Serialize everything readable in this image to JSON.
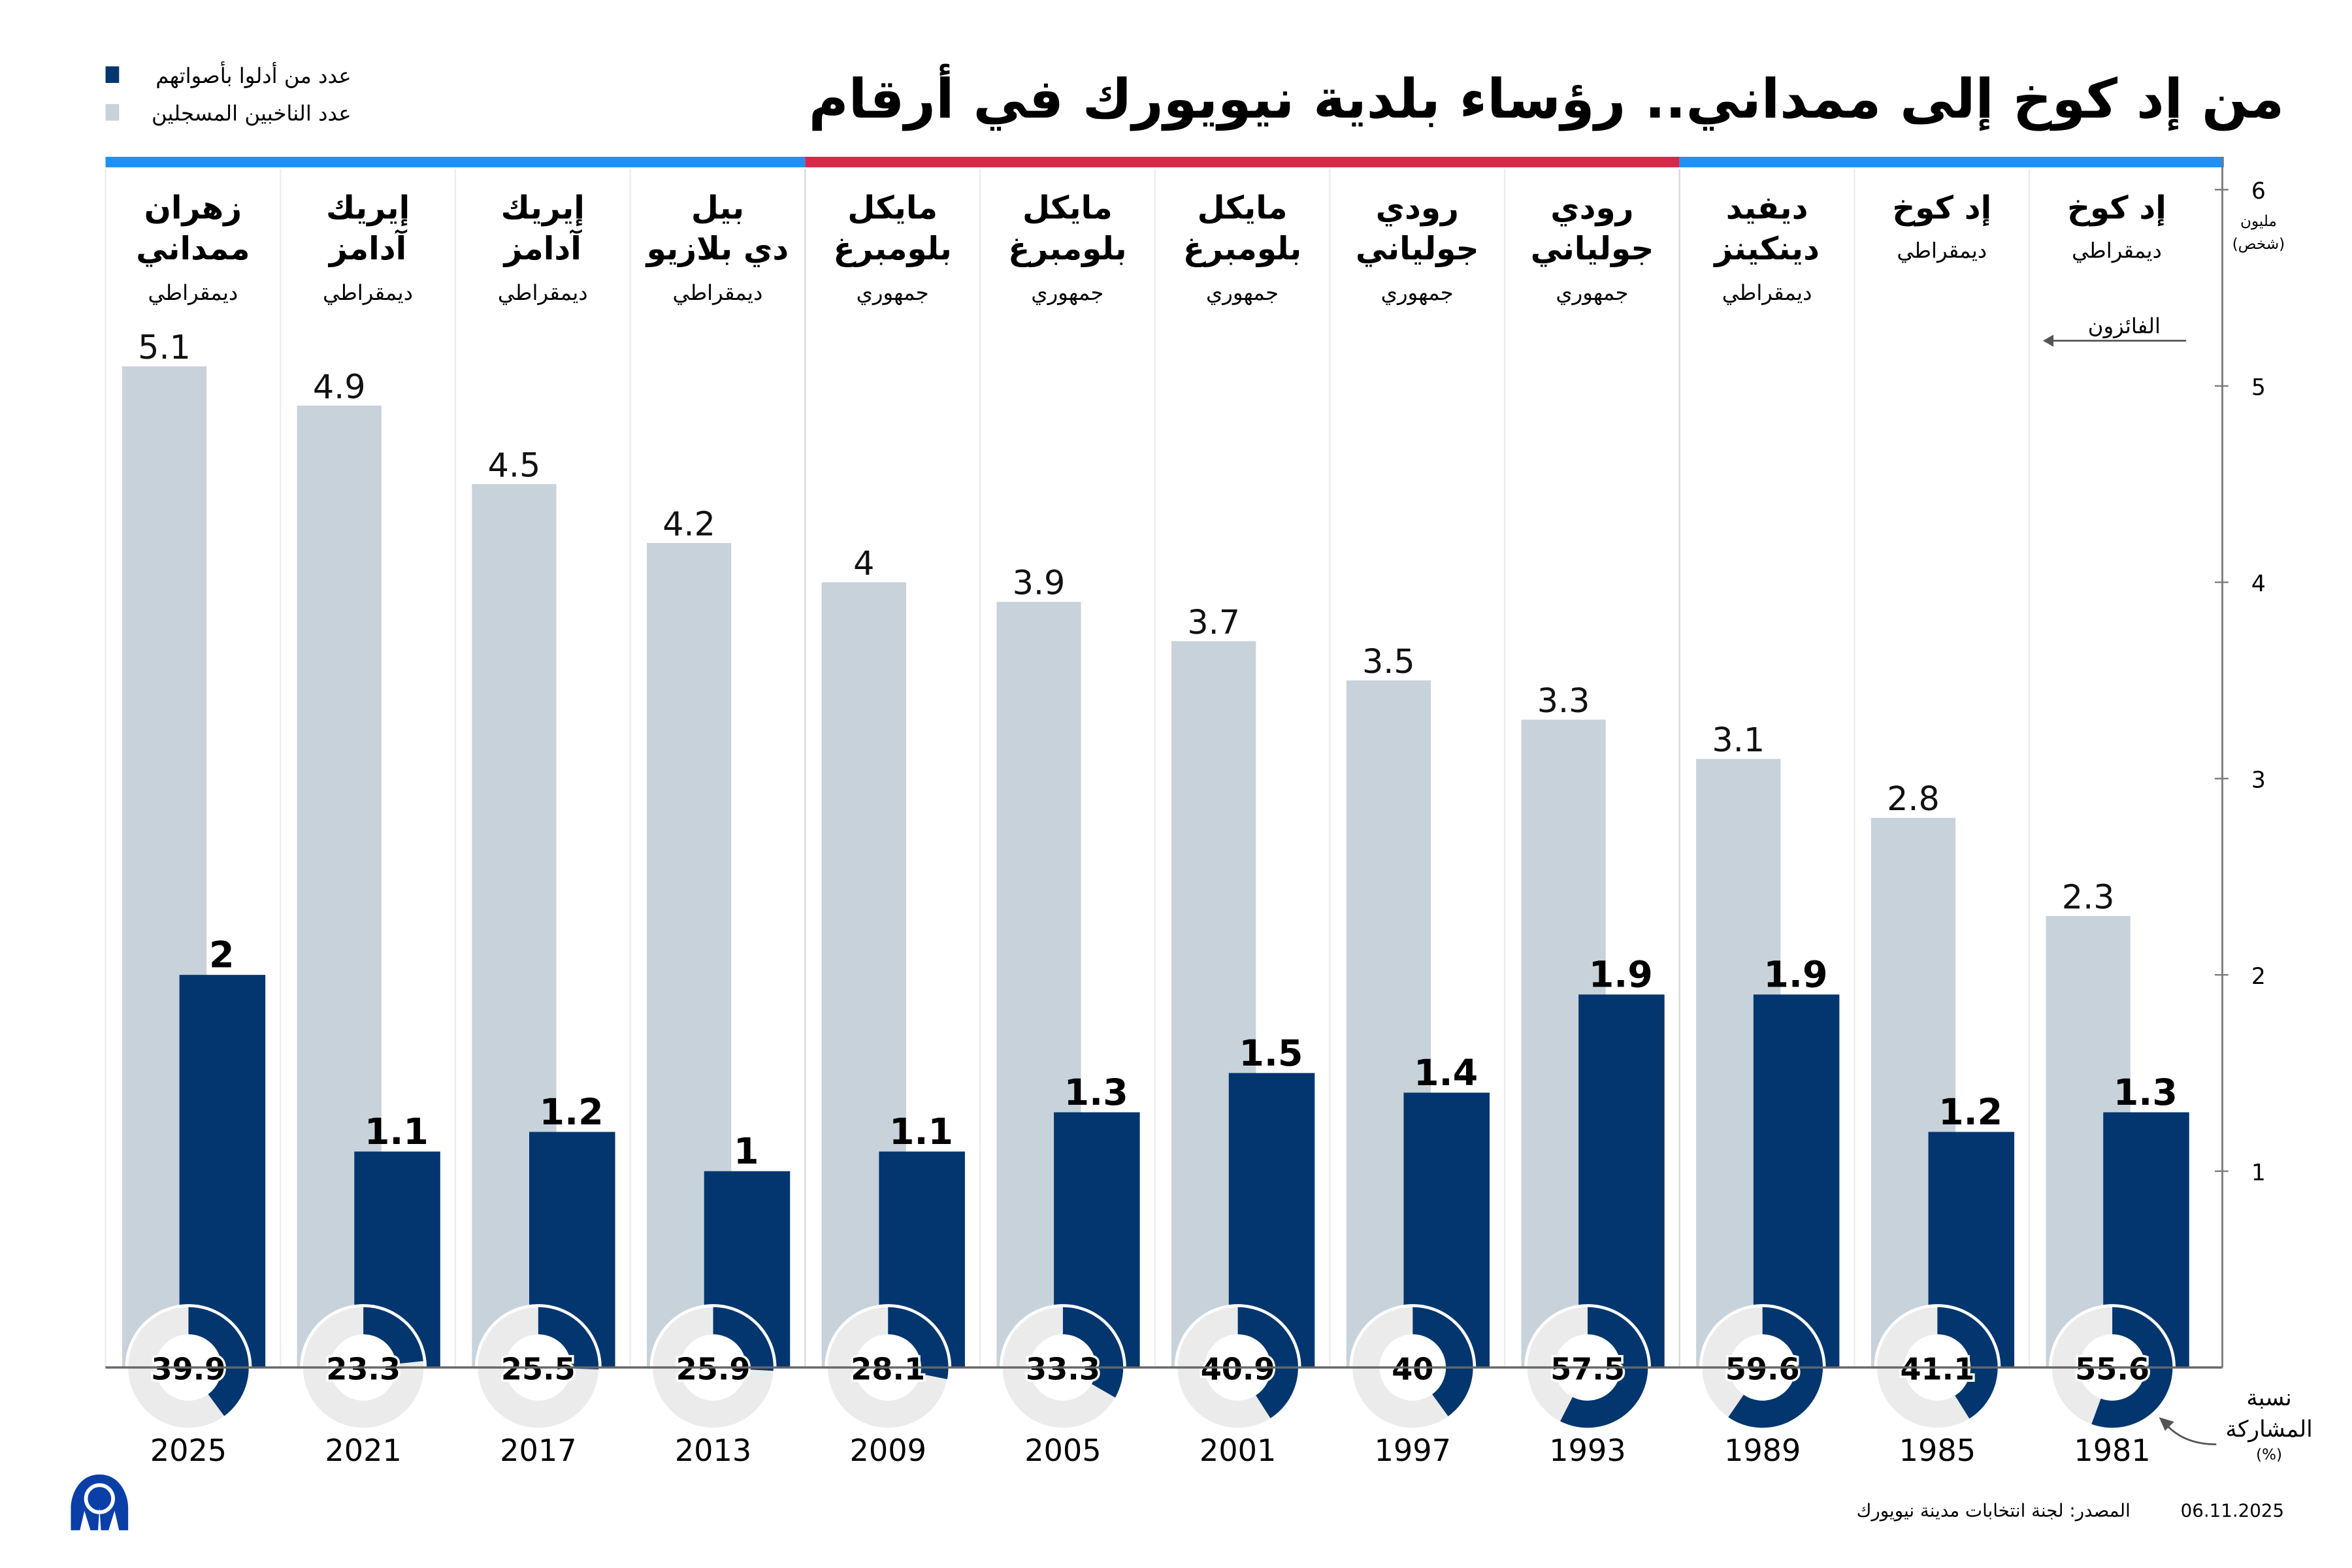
{
  "header": {
    "title": "من إد كوخ إلى ممداني.. رؤساء بلدية نيويورك في أرقام"
  },
  "legend": [
    {
      "label": "عدد من أدلوا بأصواتهم",
      "color": "#03366f"
    },
    {
      "label": "عدد الناخبين المسجلين",
      "color": "#c8d2db"
    }
  ],
  "annotations": {
    "winners": "الفائزون",
    "unit_line1": "مليون",
    "unit_line2": "(شخص)",
    "turnout_line1": "نسبة",
    "turnout_line2": "المشاركة",
    "turnout_line3": "(%)"
  },
  "footer": {
    "source": "المصدر: لجنة انتخابات مدينة نيويورك",
    "date": "06.11.2025",
    "logo_text": "AA"
  },
  "colors": {
    "registered": "#c8d2db",
    "voted": "#03366f",
    "democrat_band": "#1f91f6",
    "republican_band": "#d8284a",
    "donut_track": "#ebebeb",
    "logo": "#0a3fa8"
  },
  "chart_data": {
    "type": "bar",
    "ylim": [
      0,
      6
    ],
    "yticks": [
      "1",
      "2",
      "3",
      "4",
      "5",
      "6"
    ],
    "ylabel": "مليون (شخص)",
    "grid": false,
    "legend_position": "top-left",
    "categories": [
      "2025",
      "2021",
      "2017",
      "2013",
      "2009",
      "2005",
      "2001",
      "1997",
      "1993",
      "1989",
      "1985",
      "1981"
    ],
    "mayors": [
      {
        "name": [
          "زهران",
          "ممداني"
        ],
        "party": "ديمقراطي"
      },
      {
        "name": [
          "إيريك",
          "آدامز"
        ],
        "party": "ديمقراطي"
      },
      {
        "name": [
          "إيريك",
          "آدامز"
        ],
        "party": "ديمقراطي"
      },
      {
        "name": [
          "بيل",
          "دي بلازيو"
        ],
        "party": "ديمقراطي"
      },
      {
        "name": [
          "مايكل",
          "بلومبرغ"
        ],
        "party": "جمهوري"
      },
      {
        "name": [
          "مايكل",
          "بلومبرغ"
        ],
        "party": "جمهوري"
      },
      {
        "name": [
          "مايكل",
          "بلومبرغ"
        ],
        "party": "جمهوري"
      },
      {
        "name": [
          "رودي",
          "جولياني"
        ],
        "party": "جمهوري"
      },
      {
        "name": [
          "رودي",
          "جولياني"
        ],
        "party": "جمهوري"
      },
      {
        "name": [
          "ديفيد",
          "دينكينز"
        ],
        "party": "ديمقراطي"
      },
      {
        "name": [
          "إد كوخ"
        ],
        "party": "ديمقراطي"
      },
      {
        "name": [
          "إد كوخ"
        ],
        "party": "ديمقراطي"
      }
    ],
    "series": [
      {
        "name": "عدد الناخبين المسجلين",
        "values": [
          5.1,
          4.9,
          4.5,
          4.2,
          4,
          3.9,
          3.7,
          3.5,
          3.3,
          3.1,
          2.8,
          2.3
        ]
      },
      {
        "name": "عدد من أدلوا بأصواتهم",
        "values": [
          2,
          1.1,
          1.2,
          1,
          1.1,
          1.3,
          1.5,
          1.4,
          1.9,
          1.9,
          1.2,
          1.3
        ]
      }
    ],
    "turnout_percent": [
      39.9,
      23.3,
      25.5,
      25.9,
      28.1,
      33.3,
      40.9,
      40,
      57.5,
      59.6,
      41.1,
      55.6
    ]
  }
}
